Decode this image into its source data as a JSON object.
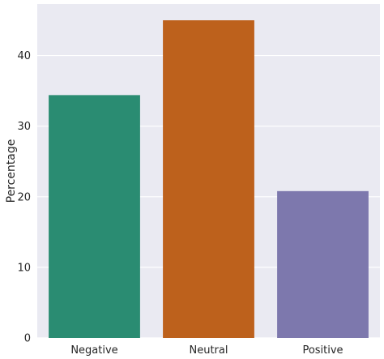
{
  "chart_data": {
    "type": "bar",
    "title": "",
    "xlabel": "",
    "ylabel": "Percentage",
    "categories": [
      "Negative",
      "Neutral",
      "Positive"
    ],
    "values": [
      34.4,
      45.0,
      20.8
    ],
    "colors": [
      "#2a8c72",
      "#bd611c",
      "#7d78ad"
    ],
    "ylim": [
      0,
      47.3
    ],
    "yticks": [
      0,
      10,
      20,
      30,
      40
    ],
    "grid": true,
    "background_color": "#eaeaf2",
    "grid_color": "#ffffff"
  }
}
